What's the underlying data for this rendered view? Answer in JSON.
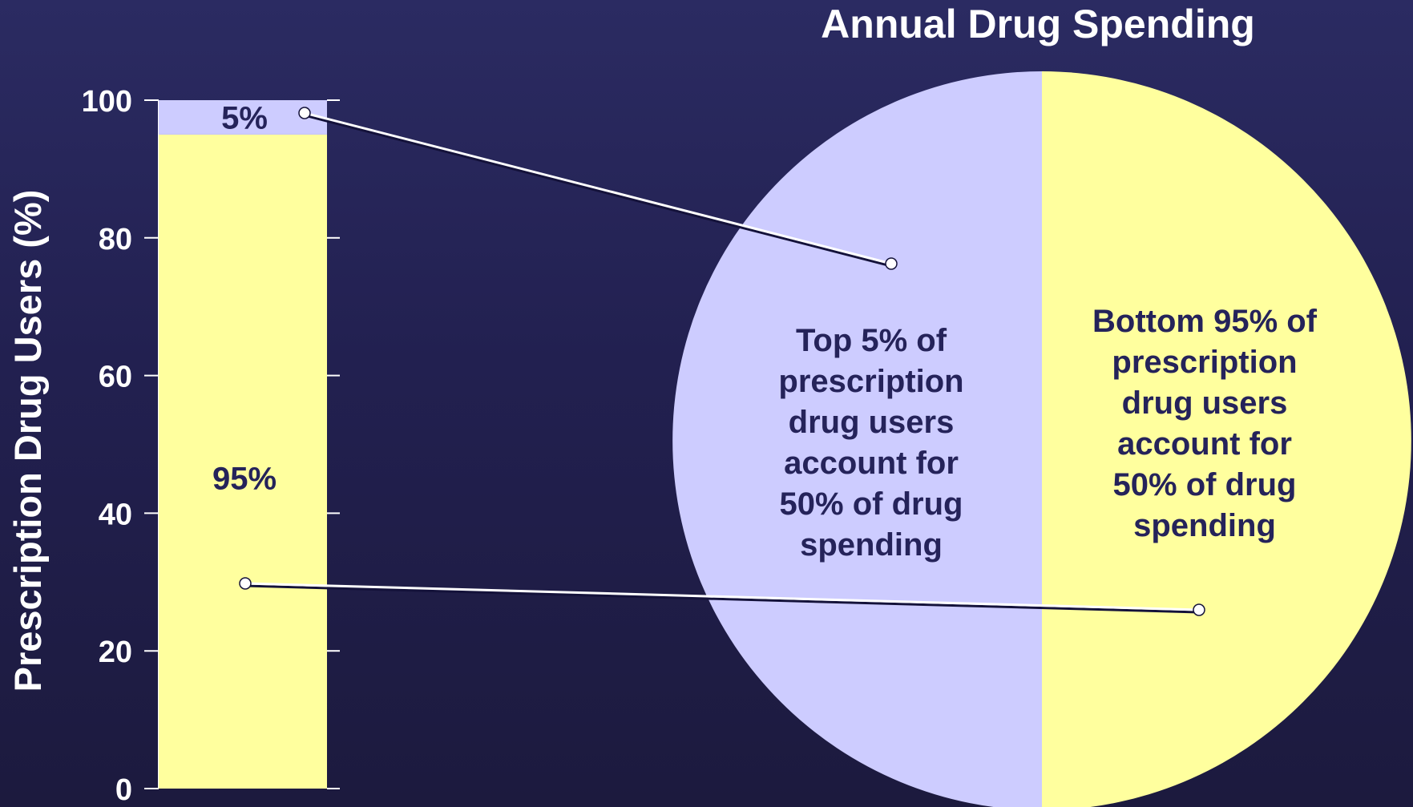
{
  "colors": {
    "top_segment": "#cdccff",
    "bottom_segment": "#ffff9e",
    "text_dark": "#25235a",
    "text_light": "#ffffff",
    "connector": "#ffffff"
  },
  "chart_data": [
    {
      "type": "bar",
      "ylabel": "Prescription Drug Users (%)",
      "ylim": [
        0,
        100
      ],
      "yticks": [
        "0",
        "20",
        "40",
        "60",
        "80",
        "100"
      ],
      "series": [
        {
          "name": "Bottom 95%",
          "values": [
            95
          ],
          "label": "95%"
        },
        {
          "name": "Top 5%",
          "values": [
            5
          ],
          "label": "5%"
        }
      ]
    },
    {
      "type": "pie",
      "title": "Annual Drug Spending",
      "slices": [
        {
          "value": 50,
          "label_lines": [
            "Top 5% of",
            "prescription",
            "drug users",
            "account for",
            "50% of drug",
            "spending"
          ]
        },
        {
          "value": 50,
          "label_lines": [
            "Bottom 95% of",
            "prescription",
            "drug users",
            "account for",
            "50% of drug",
            "spending"
          ]
        }
      ]
    }
  ]
}
